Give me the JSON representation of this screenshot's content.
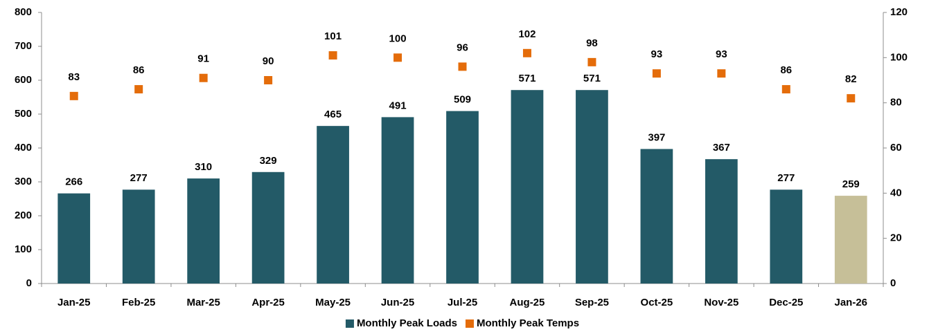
{
  "chart_data": {
    "type": "bar",
    "categories": [
      "Jan-25",
      "Feb-25",
      "Mar-25",
      "Apr-25",
      "May-25",
      "Jun-25",
      "Jul-25",
      "Aug-25",
      "Sep-25",
      "Oct-25",
      "Nov-25",
      "Dec-25",
      "Jan-26"
    ],
    "series": [
      {
        "name": "Monthly Peak Loads",
        "type": "bar",
        "color": "#235a67",
        "colors": [
          "#235a67",
          "#235a67",
          "#235a67",
          "#235a67",
          "#235a67",
          "#235a67",
          "#235a67",
          "#235a67",
          "#235a67",
          "#235a67",
          "#235a67",
          "#235a67",
          "#c6bf98"
        ],
        "values": [
          266,
          277,
          310,
          329,
          465,
          491,
          509,
          571,
          571,
          397,
          367,
          277,
          259
        ]
      },
      {
        "name": "Monthly Peak Temps",
        "type": "scatter",
        "axis": "y2",
        "color": "#e46c0a",
        "values": [
          83,
          86,
          91,
          90,
          101,
          100,
          96,
          102,
          98,
          93,
          93,
          86,
          82
        ]
      }
    ],
    "ylim": [
      0,
      800
    ],
    "yticks": [
      0,
      100,
      200,
      300,
      400,
      500,
      600,
      700,
      800
    ],
    "y2lim": [
      0,
      120
    ],
    "y2ticks": [
      0,
      20,
      40,
      60,
      80,
      100,
      120
    ],
    "legend": "bottom"
  }
}
